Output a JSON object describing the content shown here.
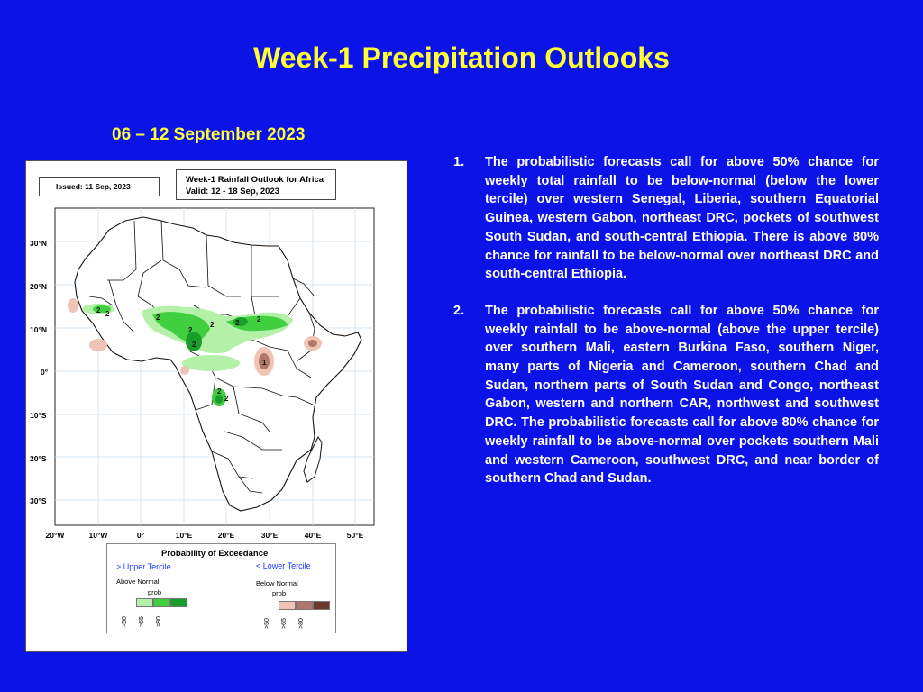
{
  "title": "Week-1 Precipitation Outlooks",
  "date_range": "06 – 12 September 2023",
  "map": {
    "issued": "Issued: 11 Sep, 2023",
    "outlook_title": "Week-1 Rainfall Outlook for Africa",
    "outlook_valid": "Valid: 12 - 18 Sep, 2023",
    "lat_labels": [
      "30°N",
      "20°N",
      "10°N",
      "0°",
      "10°S",
      "20°S",
      "30°S"
    ],
    "lon_labels": [
      "20°W",
      "10°W",
      "0°",
      "10°E",
      "20°E",
      "30°E",
      "40°E",
      "50°E"
    ],
    "legend": {
      "title": "Probability of Exceedance",
      "upper_label": "> Upper Tercile",
      "lower_label": "< Lower Tercile",
      "above_label": "Above Normal",
      "below_label": "Below Normal",
      "prob_label": "prob",
      "ticks": [
        ">50",
        ">65",
        ">80"
      ],
      "above_colors": [
        "#b4f0a8",
        "#3fcf3f",
        "#1a9e2a"
      ],
      "below_colors": [
        "#f0c4b4",
        "#b0786a",
        "#6b3a2a"
      ]
    }
  },
  "bullets": [
    {
      "num": "1.",
      "text": "The probabilistic forecasts call for above 50% chance for weekly total rainfall to be below-normal (below the lower tercile) over western Senegal, Liberia, southern Equatorial Guinea, western Gabon, northeast DRC, pockets of southwest South Sudan, and south-central Ethiopia. There is above 80% chance for rainfall to be below-normal over northeast DRC and south-central Ethiopia."
    },
    {
      "num": "2.",
      "text": "The probabilistic forecasts call for above 50% chance for weekly rainfall to be above-normal (above the upper tercile) over southern Mali, eastern Burkina Faso, southern Niger, many parts of Nigeria and Cameroon, southern Chad and Sudan, northern parts of South Sudan and Congo, northeast Gabon, western and northern CAR, northwest and southwest DRC. The probabilistic forecasts call for above 80% chance for weekly rainfall to be above-normal over pockets southern Mali and western Cameroon, southwest DRC, and near border of southern Chad and Sudan."
    }
  ]
}
